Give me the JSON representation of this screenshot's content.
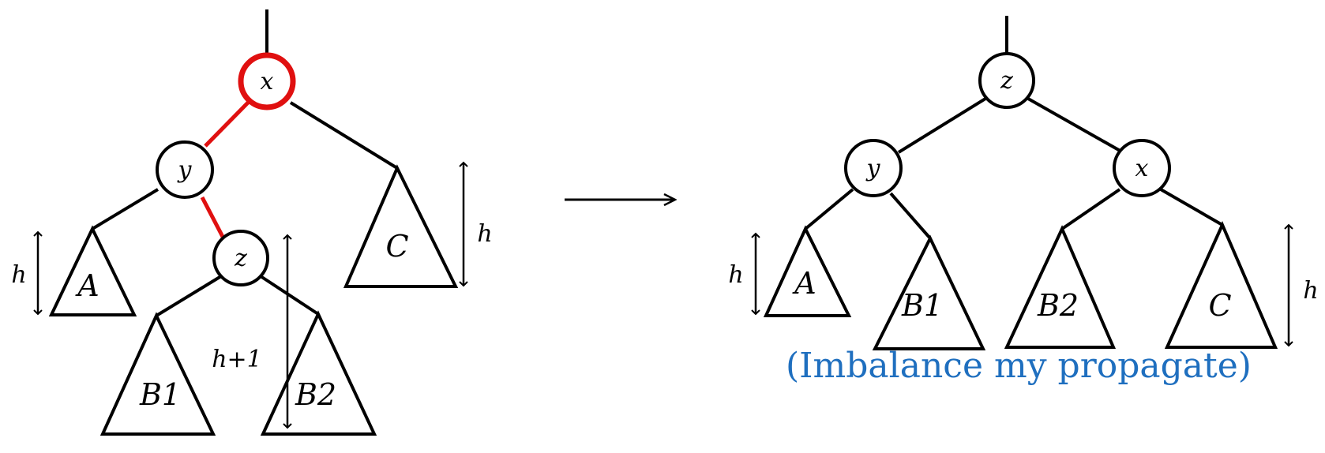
{
  "before": {
    "nodes": {
      "x": "x",
      "y": "y",
      "z": "z"
    },
    "subtrees": {
      "a": "A",
      "b1": "B1",
      "b2": "B2",
      "c": "C"
    },
    "heights": {
      "a": "h",
      "c": "h",
      "z": "h+1"
    }
  },
  "after": {
    "nodes": {
      "z": "z",
      "y": "y",
      "x": "x"
    },
    "subtrees": {
      "a": "A",
      "b1": "B1",
      "b2": "B2",
      "c": "C"
    },
    "heights": {
      "a": "h",
      "c": "h"
    }
  },
  "caption": "(Imbalance my propagate)",
  "colors": {
    "highlight": "#e01010",
    "caption": "#1f6fbf"
  }
}
